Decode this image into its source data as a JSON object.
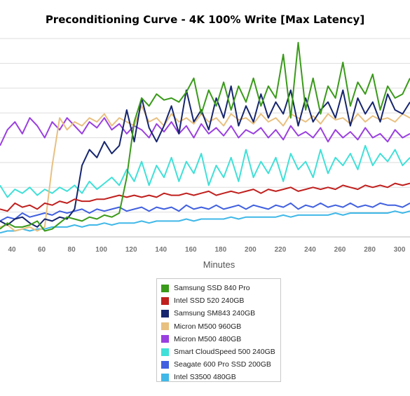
{
  "chart_data": {
    "type": "line",
    "title": "Preconditioning Curve - 4K 100% Write [Max Latency]",
    "xlabel": "Minutes",
    "ylabel": "",
    "x_ticks": [
      40,
      60,
      80,
      100,
      120,
      140,
      160,
      180,
      200,
      220,
      240,
      260,
      280,
      300
    ],
    "xlim": [
      32,
      307
    ],
    "y_grid": true,
    "legend_position": "bottom-center",
    "series": [
      {
        "name": "Samsung SSD 840 Pro",
        "color": "#3a9a1a",
        "sample_every_min": 5,
        "x": [
          32,
          37,
          42,
          47,
          52,
          57,
          62,
          67,
          72,
          77,
          82,
          87,
          92,
          97,
          102,
          107,
          112,
          117,
          122,
          127,
          132,
          137,
          142,
          147,
          152,
          157,
          162,
          167,
          172,
          177,
          182,
          187,
          192,
          197,
          202,
          207,
          212,
          217,
          222,
          227,
          232,
          237,
          242,
          247,
          252,
          257,
          262,
          267,
          272,
          277,
          282,
          287,
          292,
          297,
          302,
          307
        ],
        "y": [
          0.04,
          0.07,
          0.05,
          0.05,
          0.06,
          0.08,
          0.03,
          0.04,
          0.07,
          0.1,
          0.09,
          0.08,
          0.1,
          0.09,
          0.11,
          0.1,
          0.12,
          0.3,
          0.58,
          0.7,
          0.66,
          0.72,
          0.69,
          0.7,
          0.68,
          0.73,
          0.8,
          0.62,
          0.74,
          0.66,
          0.78,
          0.64,
          0.76,
          0.68,
          0.8,
          0.66,
          0.76,
          0.7,
          0.92,
          0.6,
          0.98,
          0.64,
          0.8,
          0.62,
          0.76,
          0.7,
          0.88,
          0.66,
          0.78,
          0.72,
          0.82,
          0.64,
          0.76,
          0.7,
          0.72,
          0.8
        ]
      },
      {
        "name": "Intel SSD 520 240GB",
        "color": "#c0201e",
        "sample_every_min": 5,
        "x": [
          32,
          37,
          42,
          47,
          52,
          57,
          62,
          67,
          72,
          77,
          82,
          87,
          92,
          97,
          102,
          107,
          112,
          117,
          122,
          127,
          132,
          137,
          142,
          147,
          152,
          157,
          162,
          167,
          172,
          177,
          182,
          187,
          192,
          197,
          202,
          207,
          212,
          217,
          222,
          227,
          232,
          237,
          242,
          247,
          252,
          257,
          262,
          267,
          272,
          277,
          282,
          287,
          292,
          297,
          302,
          307
        ],
        "y": [
          0.14,
          0.13,
          0.17,
          0.15,
          0.16,
          0.14,
          0.17,
          0.16,
          0.18,
          0.17,
          0.19,
          0.18,
          0.18,
          0.19,
          0.19,
          0.2,
          0.21,
          0.2,
          0.21,
          0.2,
          0.21,
          0.2,
          0.22,
          0.21,
          0.21,
          0.22,
          0.21,
          0.22,
          0.23,
          0.21,
          0.22,
          0.23,
          0.22,
          0.23,
          0.24,
          0.22,
          0.24,
          0.23,
          0.24,
          0.25,
          0.23,
          0.24,
          0.25,
          0.24,
          0.25,
          0.24,
          0.26,
          0.25,
          0.24,
          0.26,
          0.25,
          0.26,
          0.25,
          0.27,
          0.26,
          0.27
        ]
      },
      {
        "name": "Samsung SM843 240GB",
        "color": "#16256e",
        "sample_every_min": 5,
        "x": [
          32,
          37,
          42,
          47,
          52,
          57,
          62,
          67,
          72,
          77,
          82,
          87,
          92,
          97,
          102,
          107,
          112,
          117,
          122,
          127,
          132,
          137,
          142,
          147,
          152,
          157,
          162,
          167,
          172,
          177,
          182,
          187,
          192,
          197,
          202,
          207,
          212,
          217,
          222,
          227,
          232,
          237,
          242,
          247,
          252,
          257,
          262,
          267,
          272,
          277,
          282,
          287,
          292,
          297,
          302,
          307
        ],
        "y": [
          0.08,
          0.06,
          0.09,
          0.1,
          0.07,
          0.05,
          0.09,
          0.08,
          0.1,
          0.09,
          0.14,
          0.36,
          0.44,
          0.4,
          0.48,
          0.42,
          0.46,
          0.64,
          0.48,
          0.7,
          0.55,
          0.48,
          0.56,
          0.66,
          0.52,
          0.74,
          0.58,
          0.64,
          0.54,
          0.7,
          0.6,
          0.76,
          0.56,
          0.66,
          0.58,
          0.72,
          0.6,
          0.68,
          0.62,
          0.74,
          0.56,
          0.7,
          0.58,
          0.64,
          0.68,
          0.6,
          0.74,
          0.56,
          0.7,
          0.62,
          0.68,
          0.58,
          0.72,
          0.64,
          0.62,
          0.68
        ]
      },
      {
        "name": "Micron M500 960GB",
        "color": "#e8c080",
        "sample_every_min": 5,
        "x": [
          32,
          37,
          42,
          47,
          52,
          57,
          62,
          67,
          72,
          77,
          82,
          87,
          92,
          97,
          102,
          107,
          112,
          117,
          122,
          127,
          132,
          137,
          142,
          147,
          152,
          157,
          162,
          167,
          172,
          177,
          182,
          187,
          192,
          197,
          202,
          207,
          212,
          217,
          222,
          227,
          232,
          237,
          242,
          247,
          252,
          257,
          262,
          267,
          272,
          277,
          282,
          287,
          292,
          297,
          302,
          307
        ],
        "y": [
          0.05,
          0.06,
          0.03,
          0.04,
          0.05,
          0.03,
          0.05,
          0.36,
          0.6,
          0.54,
          0.58,
          0.56,
          0.6,
          0.58,
          0.62,
          0.56,
          0.6,
          0.58,
          0.56,
          0.66,
          0.58,
          0.6,
          0.56,
          0.62,
          0.58,
          0.6,
          0.57,
          0.62,
          0.58,
          0.6,
          0.56,
          0.62,
          0.59,
          0.6,
          0.57,
          0.62,
          0.58,
          0.6,
          0.56,
          0.62,
          0.6,
          0.58,
          0.61,
          0.57,
          0.62,
          0.59,
          0.6,
          0.57,
          0.62,
          0.58,
          0.61,
          0.59,
          0.6,
          0.58,
          0.62,
          0.6
        ]
      },
      {
        "name": "Micron M500 480GB",
        "color": "#9a40e0",
        "sample_every_min": 5,
        "x": [
          32,
          37,
          42,
          47,
          52,
          57,
          62,
          67,
          72,
          77,
          82,
          87,
          92,
          97,
          102,
          107,
          112,
          117,
          122,
          127,
          132,
          137,
          142,
          147,
          152,
          157,
          162,
          167,
          172,
          177,
          182,
          187,
          192,
          197,
          202,
          207,
          212,
          217,
          222,
          227,
          232,
          237,
          242,
          247,
          252,
          257,
          262,
          267,
          272,
          277,
          282,
          287,
          292,
          297,
          302,
          307
        ],
        "y": [
          0.46,
          0.54,
          0.58,
          0.52,
          0.6,
          0.56,
          0.5,
          0.58,
          0.54,
          0.6,
          0.56,
          0.52,
          0.58,
          0.55,
          0.6,
          0.54,
          0.57,
          0.52,
          0.56,
          0.54,
          0.5,
          0.57,
          0.53,
          0.58,
          0.52,
          0.56,
          0.5,
          0.57,
          0.52,
          0.55,
          0.51,
          0.56,
          0.5,
          0.54,
          0.52,
          0.55,
          0.5,
          0.54,
          0.49,
          0.56,
          0.51,
          0.53,
          0.5,
          0.55,
          0.48,
          0.54,
          0.5,
          0.53,
          0.49,
          0.55,
          0.5,
          0.52,
          0.48,
          0.54,
          0.5,
          0.52
        ]
      },
      {
        "name": "Smart CloudSpeed 500 240GB",
        "color": "#40e0d8",
        "sample_every_min": 5,
        "x": [
          32,
          37,
          42,
          47,
          52,
          57,
          62,
          67,
          72,
          77,
          82,
          87,
          92,
          97,
          102,
          107,
          112,
          117,
          122,
          127,
          132,
          137,
          142,
          147,
          152,
          157,
          162,
          167,
          172,
          177,
          182,
          187,
          192,
          197,
          202,
          207,
          212,
          217,
          222,
          227,
          232,
          237,
          242,
          247,
          252,
          257,
          262,
          267,
          272,
          277,
          282,
          287,
          292,
          297,
          302,
          307
        ],
        "y": [
          0.26,
          0.2,
          0.24,
          0.22,
          0.25,
          0.21,
          0.24,
          0.22,
          0.25,
          0.23,
          0.26,
          0.22,
          0.28,
          0.24,
          0.27,
          0.3,
          0.26,
          0.34,
          0.28,
          0.38,
          0.26,
          0.36,
          0.3,
          0.4,
          0.28,
          0.38,
          0.32,
          0.42,
          0.26,
          0.36,
          0.3,
          0.4,
          0.28,
          0.44,
          0.3,
          0.38,
          0.32,
          0.4,
          0.28,
          0.42,
          0.34,
          0.38,
          0.3,
          0.44,
          0.32,
          0.4,
          0.36,
          0.42,
          0.34,
          0.46,
          0.36,
          0.42,
          0.38,
          0.44,
          0.36,
          0.4
        ]
      },
      {
        "name": "Seagate 600 Pro SSD 200GB",
        "color": "#4060e0",
        "sample_every_min": 5,
        "x": [
          32,
          37,
          42,
          47,
          52,
          57,
          62,
          67,
          72,
          77,
          82,
          87,
          92,
          97,
          102,
          107,
          112,
          117,
          122,
          127,
          132,
          137,
          142,
          147,
          152,
          157,
          162,
          167,
          172,
          177,
          182,
          187,
          192,
          197,
          202,
          207,
          212,
          217,
          222,
          227,
          232,
          237,
          242,
          247,
          252,
          257,
          262,
          267,
          272,
          277,
          282,
          287,
          292,
          297,
          302,
          307
        ],
        "y": [
          0.08,
          0.1,
          0.09,
          0.12,
          0.1,
          0.11,
          0.12,
          0.11,
          0.13,
          0.12,
          0.13,
          0.14,
          0.12,
          0.14,
          0.13,
          0.14,
          0.15,
          0.13,
          0.14,
          0.15,
          0.13,
          0.15,
          0.14,
          0.15,
          0.13,
          0.16,
          0.14,
          0.15,
          0.14,
          0.16,
          0.14,
          0.15,
          0.16,
          0.14,
          0.16,
          0.15,
          0.14,
          0.16,
          0.15,
          0.17,
          0.14,
          0.16,
          0.15,
          0.17,
          0.15,
          0.16,
          0.15,
          0.17,
          0.15,
          0.16,
          0.15,
          0.17,
          0.16,
          0.16,
          0.15,
          0.17
        ]
      },
      {
        "name": "Intel S3500 480GB",
        "color": "#40b8e8",
        "sample_every_min": 5,
        "x": [
          32,
          37,
          42,
          47,
          52,
          57,
          62,
          67,
          72,
          77,
          82,
          87,
          92,
          97,
          102,
          107,
          112,
          117,
          122,
          127,
          132,
          137,
          142,
          147,
          152,
          157,
          162,
          167,
          172,
          177,
          182,
          187,
          192,
          197,
          202,
          207,
          212,
          217,
          222,
          227,
          232,
          237,
          242,
          247,
          252,
          257,
          262,
          267,
          272,
          277,
          282,
          287,
          292,
          297,
          302,
          307
        ],
        "y": [
          0.02,
          0.03,
          0.03,
          0.04,
          0.03,
          0.04,
          0.04,
          0.05,
          0.05,
          0.05,
          0.06,
          0.05,
          0.06,
          0.06,
          0.07,
          0.06,
          0.07,
          0.07,
          0.07,
          0.08,
          0.07,
          0.08,
          0.08,
          0.08,
          0.08,
          0.09,
          0.08,
          0.09,
          0.09,
          0.09,
          0.09,
          0.1,
          0.09,
          0.1,
          0.1,
          0.1,
          0.1,
          0.1,
          0.11,
          0.1,
          0.11,
          0.11,
          0.11,
          0.11,
          0.11,
          0.12,
          0.11,
          0.12,
          0.12,
          0.12,
          0.12,
          0.12,
          0.12,
          0.13,
          0.12,
          0.13
        ]
      }
    ]
  }
}
